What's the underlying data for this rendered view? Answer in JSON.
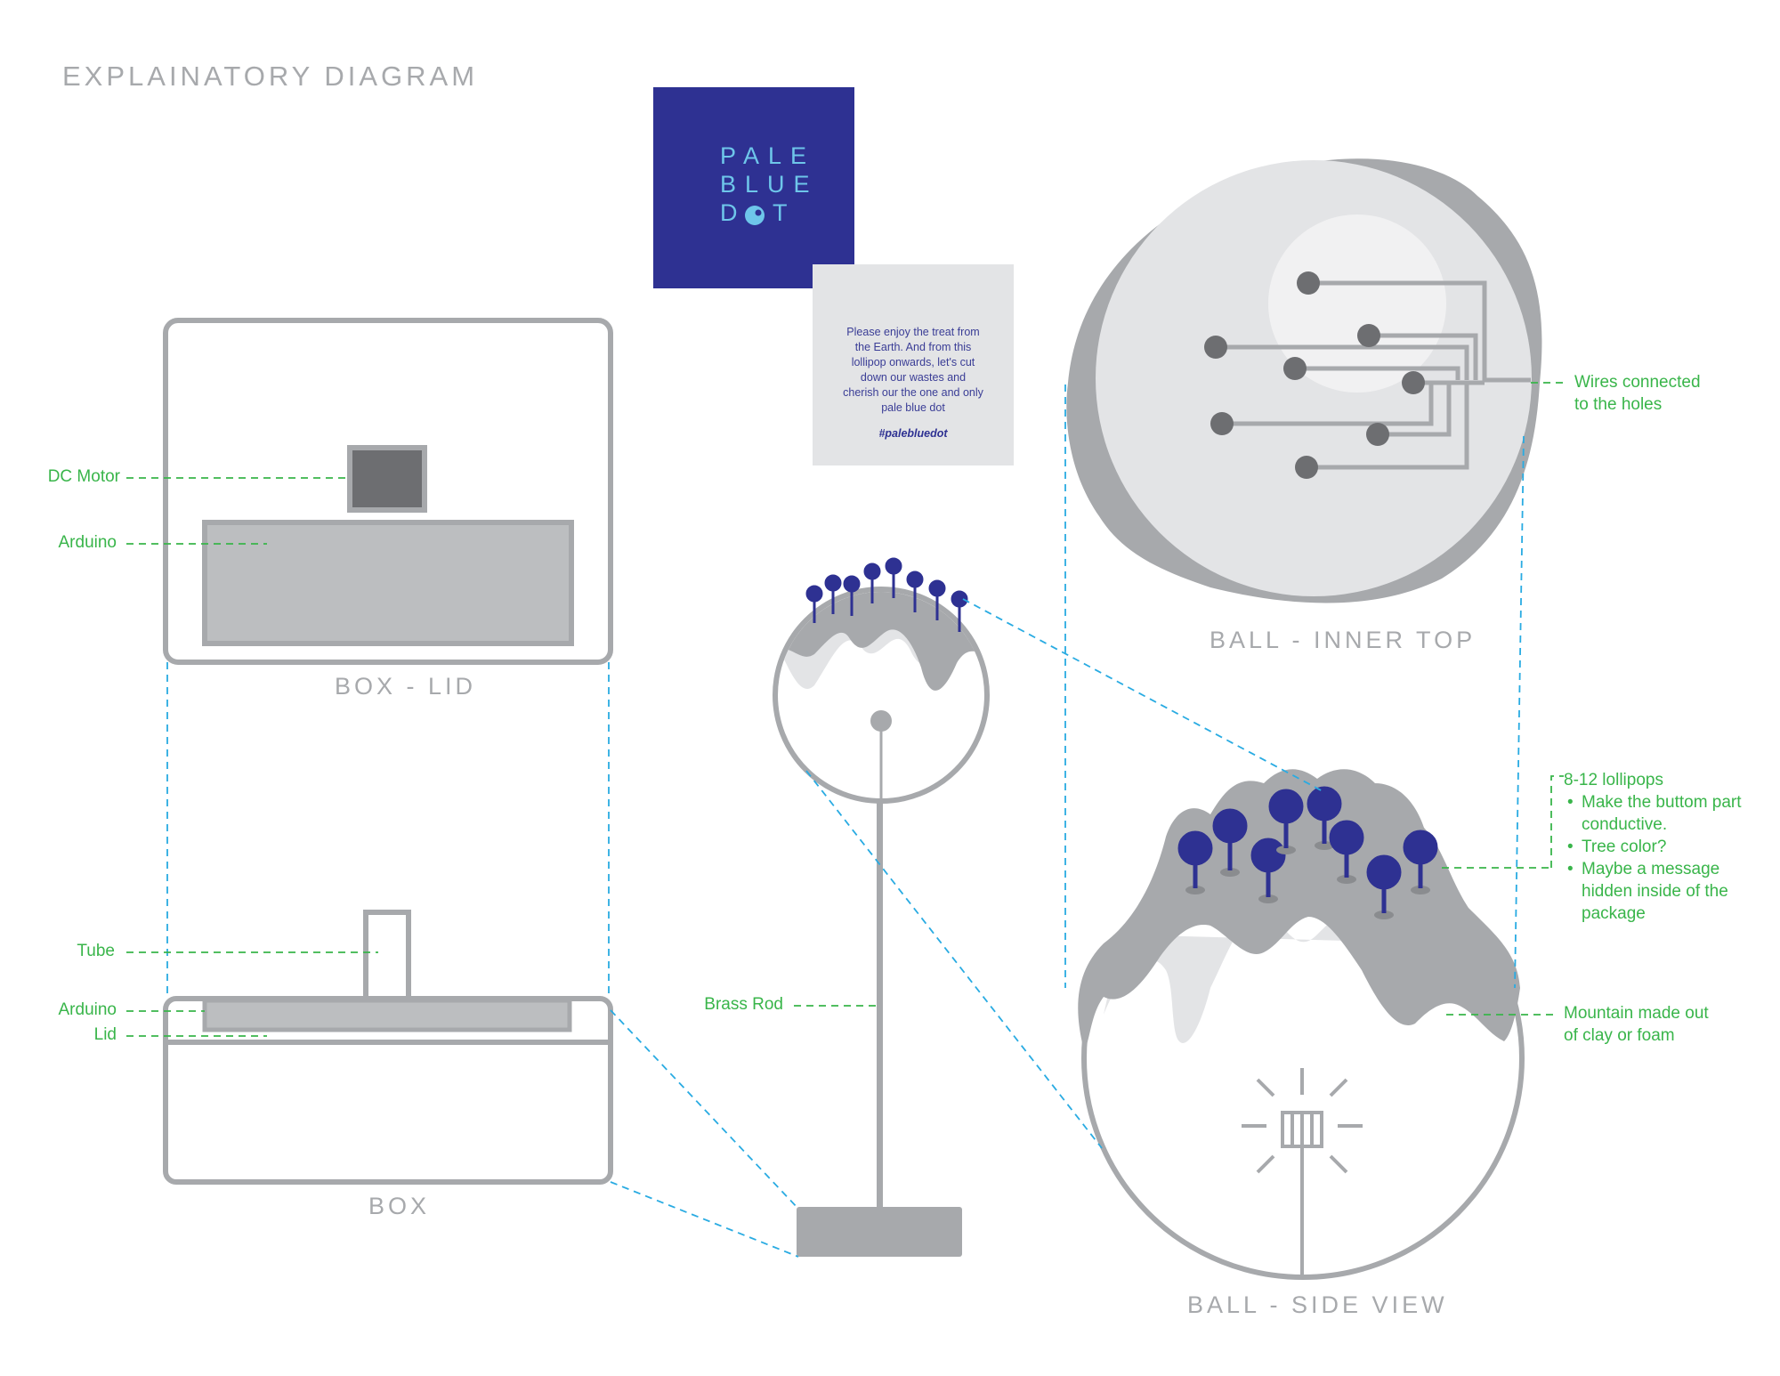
{
  "title": "EXPLAINATORY DIAGRAM",
  "logo": {
    "line1": "PALE",
    "line2": "BLUE",
    "line3_left": "D",
    "line3_right": "T"
  },
  "note": {
    "text": "Please enjoy the treat from the Earth. And from this lollipop onwards, let's cut down our wastes and cherish our the one and only pale blue dot",
    "hashtag": "#palebluedot"
  },
  "captions": {
    "box_lid": "BOX - LID",
    "box": "BOX",
    "ball_inner_top": "BALL - INNER TOP",
    "ball_side_view": "BALL - SIDE VIEW"
  },
  "labels": {
    "dc_motor": "DC Motor",
    "arduino_lid": "Arduino",
    "tube": "Tube",
    "arduino_box": "Arduino",
    "lid": "Lid",
    "brass_rod": "Brass Rod",
    "wires_line1": "Wires connected",
    "wires_line2": "to the holes",
    "mountain_line1": "Mountain made out",
    "mountain_line2": "of clay or foam",
    "lollipops_heading": "8-12 lollipops",
    "lollipops_bullets": [
      "Make the buttom part conductive.",
      "Tree color?",
      "Maybe a message hidden inside of the package"
    ]
  },
  "colors": {
    "outline_gray": "#a7a9ac",
    "fill_gray": "#bcbec0",
    "light_gray": "#e3e4e6",
    "dark_gray": "#6d6e71",
    "navy": "#2e3192",
    "sky_blue": "#6ec6ea",
    "label_green": "#39b54a",
    "guide_cyan": "#29abe2"
  }
}
